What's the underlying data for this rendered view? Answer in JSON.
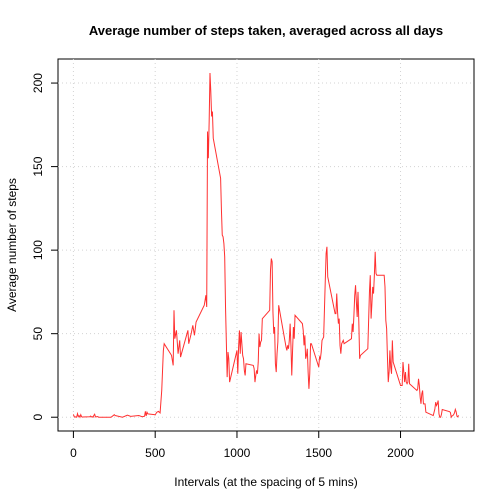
{
  "chart_data": {
    "type": "line",
    "title": "Average number of steps taken, averaged across all days",
    "x_label": "Intervals (at the spacing of 5 mins)",
    "y_label": "Average number of steps",
    "x": [
      0,
      5,
      10,
      15,
      20,
      25,
      30,
      35,
      40,
      45,
      50,
      55,
      100,
      105,
      110,
      115,
      120,
      125,
      130,
      135,
      140,
      145,
      150,
      155,
      200,
      230,
      250,
      255,
      300,
      330,
      350,
      400,
      420,
      435,
      440,
      445,
      450,
      455,
      500,
      510,
      520,
      530,
      540,
      550,
      555,
      600,
      610,
      615,
      620,
      630,
      640,
      650,
      655,
      700,
      705,
      720,
      730,
      740,
      750,
      800,
      810,
      815,
      820,
      825,
      830,
      835,
      840,
      845,
      850,
      855,
      900,
      905,
      910,
      915,
      920,
      925,
      930,
      935,
      940,
      945,
      950,
      955,
      1000,
      1005,
      1010,
      1015,
      1020,
      1025,
      1030,
      1035,
      1040,
      1045,
      1050,
      1055,
      1100,
      1105,
      1110,
      1115,
      1120,
      1125,
      1130,
      1135,
      1140,
      1145,
      1150,
      1155,
      1200,
      1205,
      1210,
      1215,
      1220,
      1225,
      1230,
      1235,
      1240,
      1245,
      1250,
      1255,
      1300,
      1305,
      1310,
      1315,
      1320,
      1325,
      1330,
      1335,
      1340,
      1345,
      1350,
      1355,
      1400,
      1405,
      1410,
      1415,
      1420,
      1425,
      1430,
      1435,
      1440,
      1445,
      1450,
      1455,
      1500,
      1505,
      1510,
      1515,
      1520,
      1525,
      1530,
      1535,
      1540,
      1545,
      1550,
      1555,
      1600,
      1605,
      1610,
      1615,
      1620,
      1625,
      1630,
      1635,
      1640,
      1645,
      1650,
      1655,
      1700,
      1705,
      1710,
      1715,
      1720,
      1725,
      1730,
      1735,
      1740,
      1745,
      1750,
      1755,
      1800,
      1805,
      1810,
      1815,
      1820,
      1825,
      1830,
      1835,
      1840,
      1845,
      1850,
      1855,
      1900,
      1905,
      1910,
      1915,
      1920,
      1925,
      1930,
      1935,
      1940,
      1945,
      1950,
      1955,
      2000,
      2005,
      2010,
      2015,
      2020,
      2025,
      2030,
      2035,
      2040,
      2045,
      2050,
      2055,
      2100,
      2105,
      2110,
      2115,
      2120,
      2125,
      2130,
      2135,
      2140,
      2145,
      2150,
      2155,
      2200,
      2205,
      2210,
      2215,
      2220,
      2225,
      2230,
      2235,
      2240,
      2245,
      2250,
      2255,
      2300,
      2305,
      2310,
      2315,
      2320,
      2325,
      2330,
      2335,
      2340,
      2345,
      2350,
      2355
    ],
    "series": [
      {
        "name": "steps",
        "color": "#ff3030",
        "values": [
          1.7,
          0.3,
          0.1,
          0.2,
          0,
          2.1,
          0.5,
          0.9,
          0,
          1.5,
          0.3,
          0.1,
          0.3,
          0.7,
          0.2,
          0.3,
          0,
          1.1,
          1.8,
          0.2,
          0.2,
          0.4,
          0.3,
          0,
          0,
          0,
          1.5,
          1,
          0,
          1.2,
          0.5,
          1,
          0.3,
          0.6,
          3.5,
          0.8,
          3,
          2,
          1.5,
          3,
          3.5,
          2.6,
          16,
          40,
          44,
          37,
          31,
          64,
          47,
          52,
          38,
          46,
          36,
          52,
          44,
          50,
          55,
          49,
          57,
          67,
          73,
          66,
          171,
          155,
          177,
          206,
          195,
          180,
          183,
          167,
          143,
          124,
          109,
          108,
          104,
          96,
          66,
          45,
          24,
          39,
          35,
          21,
          40,
          26,
          42,
          52,
          38,
          51,
          44,
          37,
          35,
          28,
          25,
          32,
          31,
          29,
          21,
          25,
          28,
          26,
          33,
          50,
          42,
          45,
          46,
          59,
          64,
          88,
          95,
          93,
          63,
          50,
          54,
          32,
          27,
          38,
          45,
          67,
          42,
          40,
          43,
          41,
          46,
          56,
          43,
          25,
          40,
          54,
          47,
          61,
          56,
          52,
          43,
          49,
          35,
          37,
          41,
          27,
          17,
          26,
          44,
          44,
          30,
          36,
          35,
          39,
          46,
          47,
          48,
          65,
          82,
          98,
          102,
          84,
          62,
          62,
          74,
          63,
          56,
          59,
          43,
          38,
          44,
          45,
          46,
          44,
          47,
          56,
          51,
          61,
          73,
          79,
          69,
          60,
          75,
          57,
          35,
          37,
          41,
          58,
          75,
          85,
          59,
          68,
          78,
          74,
          85,
          99,
          86,
          85,
          85,
          78,
          58,
          53,
          36,
          21,
          27,
          40,
          30,
          26,
          46,
          33,
          19,
          19,
          19,
          33,
          27,
          21,
          27,
          21,
          20,
          21,
          32,
          20,
          16,
          17,
          23,
          19,
          12,
          8,
          14,
          16,
          8,
          8,
          8,
          3,
          1,
          3,
          5,
          9,
          7,
          8,
          10,
          2,
          0,
          0,
          1.6,
          4.6,
          3.3,
          2.8,
          0,
          0.8,
          1,
          1.6,
          2.6,
          4.7,
          3.3,
          0.6,
          0.2,
          1.1
        ]
      }
    ],
    "xlim": [
      -94.2,
      2449.2
    ],
    "ylim": [
      -8.25,
      214.4
    ],
    "xticks": [
      0,
      500,
      1000,
      1500,
      2000
    ],
    "yticks": [
      0,
      50,
      100,
      150,
      200
    ],
    "grid": true
  }
}
